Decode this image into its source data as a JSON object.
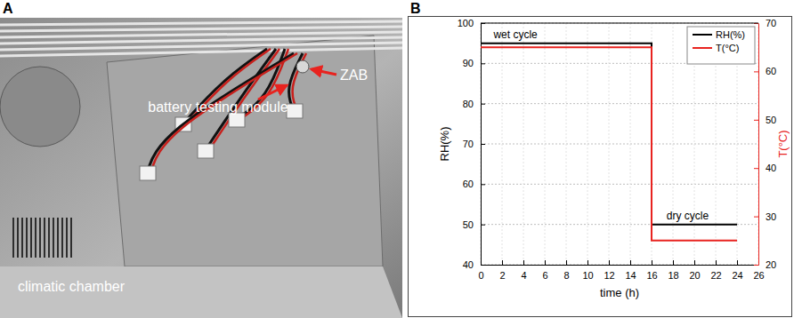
{
  "panel_labels": [
    "A",
    "B"
  ],
  "photo": {
    "labels": [
      "climatic chamber",
      "battery testing module",
      "ZAB"
    ]
  },
  "chart_data": {
    "type": "line",
    "x_label": "time (h)",
    "y_label": "RH(%)",
    "y2_label": "T(°C)",
    "x": [
      0,
      16,
      16,
      24
    ],
    "series": [
      {
        "name": "RH(%)",
        "color": "#000000",
        "values": [
          95,
          95,
          50,
          50
        ],
        "line_style": "solid"
      },
      {
        "name": "T(°C)",
        "color": "#e8231f",
        "values": [
          65,
          65,
          25,
          25
        ],
        "axis": "y2",
        "line_style": "solid"
      }
    ],
    "xlim": [
      0,
      26
    ],
    "xticks": [
      0,
      2,
      4,
      6,
      8,
      10,
      12,
      14,
      16,
      18,
      20,
      22,
      24,
      26
    ],
    "ylim": [
      40,
      100
    ],
    "yticks": [
      40,
      50,
      60,
      70,
      80,
      90,
      100
    ],
    "y2lim": [
      20,
      70
    ],
    "y2ticks": [
      20,
      30,
      40,
      50,
      60,
      70
    ],
    "annotations": [
      {
        "text": "wet cycle",
        "x": 1.2,
        "y": 96.2
      },
      {
        "text": "dry cycle",
        "x": 17.4,
        "y": 51.2
      }
    ],
    "grid": true,
    "legend": "upper right"
  }
}
